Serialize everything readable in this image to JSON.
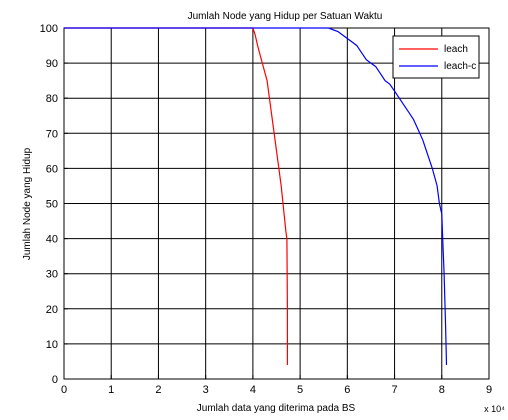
{
  "chart_data": {
    "type": "line",
    "title": "Jumlah Node yang Hidup per Satuan Waktu",
    "xlabel": "Jumlah data yang diterima pada BS",
    "ylabel": "Jumlah Node yang Hidup",
    "x_multiplier": "x 10⁴",
    "xlim": [
      0,
      9
    ],
    "ylim": [
      0,
      100
    ],
    "x_ticks": [
      "0",
      "1",
      "2",
      "3",
      "4",
      "5",
      "6",
      "7",
      "8",
      "9"
    ],
    "y_ticks": [
      "0",
      "10",
      "20",
      "30",
      "40",
      "50",
      "60",
      "70",
      "80",
      "90",
      "100"
    ],
    "grid": true,
    "legend_position": "top-right",
    "series": [
      {
        "name": "leach",
        "color": "#ff0000",
        "x": [
          0,
          4.0,
          4.05,
          4.1,
          4.2,
          4.3,
          4.4,
          4.5,
          4.6,
          4.7,
          4.72,
          4.73,
          4.73
        ],
        "y": [
          100,
          100,
          98,
          95,
          90,
          85,
          75,
          65,
          55,
          42,
          40,
          20,
          4
        ]
      },
      {
        "name": "leach-c",
        "color": "#0000ff",
        "x": [
          0,
          5.6,
          5.8,
          5.9,
          6.0,
          6.1,
          6.2,
          6.3,
          6.4,
          6.5,
          6.6,
          6.7,
          6.8,
          6.9,
          7.0,
          7.1,
          7.2,
          7.3,
          7.4,
          7.5,
          7.6,
          7.7,
          7.8,
          7.9,
          7.95,
          8.0,
          8.02,
          8.05,
          8.08,
          8.1
        ],
        "y": [
          100,
          100,
          99,
          98,
          97,
          96,
          95,
          93,
          91,
          90,
          89,
          87,
          85,
          84,
          82,
          80,
          78,
          76,
          74,
          71,
          68,
          64,
          60,
          55,
          50,
          47,
          40,
          30,
          15,
          4
        ]
      }
    ]
  }
}
